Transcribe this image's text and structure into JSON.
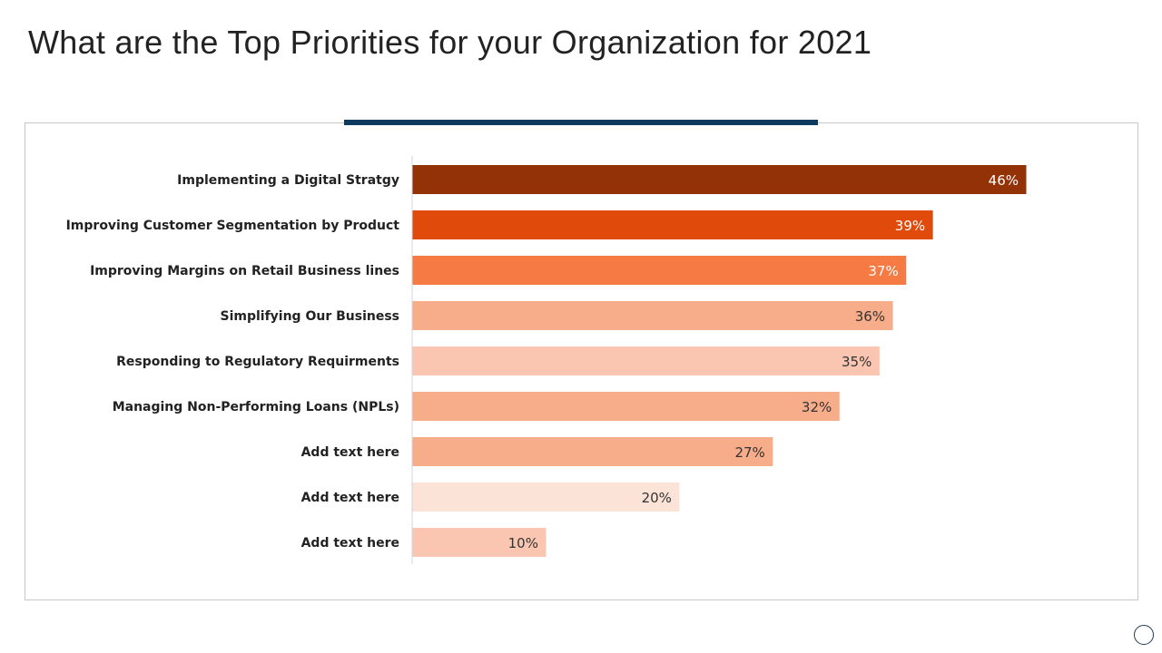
{
  "title": "What are the Top Priorities for your Organization for 2021",
  "chart_data": {
    "type": "bar",
    "orientation": "horizontal",
    "title": "",
    "xlabel": "",
    "ylabel": "",
    "xlim": [
      0,
      46
    ],
    "grid": false,
    "categories": [
      "Implementing a Digital Stratgy",
      "Improving Customer Segmentation by Product",
      "Improving Margins on Retail Business lines",
      "Simplifying Our Business",
      "Responding to Regulatory Requirments",
      "Managing Non-Performing Loans (NPLs)",
      "Add text here",
      "Add text here",
      "Add text here"
    ],
    "values": [
      46,
      39,
      37,
      36,
      35,
      32,
      27,
      20,
      10
    ],
    "value_labels": [
      "46%",
      "39%",
      "37%",
      "36%",
      "35%",
      "32%",
      "27%",
      "20%",
      "10%"
    ],
    "colors": [
      "#933206",
      "#E04B0B",
      "#F67A43",
      "#F7AC8A",
      "#FAC6B1",
      "#F7AC8A",
      "#F7AC8A",
      "#FCE3D8",
      "#FAC6B1"
    ],
    "label_colors": [
      "#ffffff",
      "#ffffff",
      "#ffffff",
      "#333333",
      "#333333",
      "#333333",
      "#333333",
      "#333333",
      "#333333"
    ]
  },
  "accent_color": "#0d3b5e"
}
